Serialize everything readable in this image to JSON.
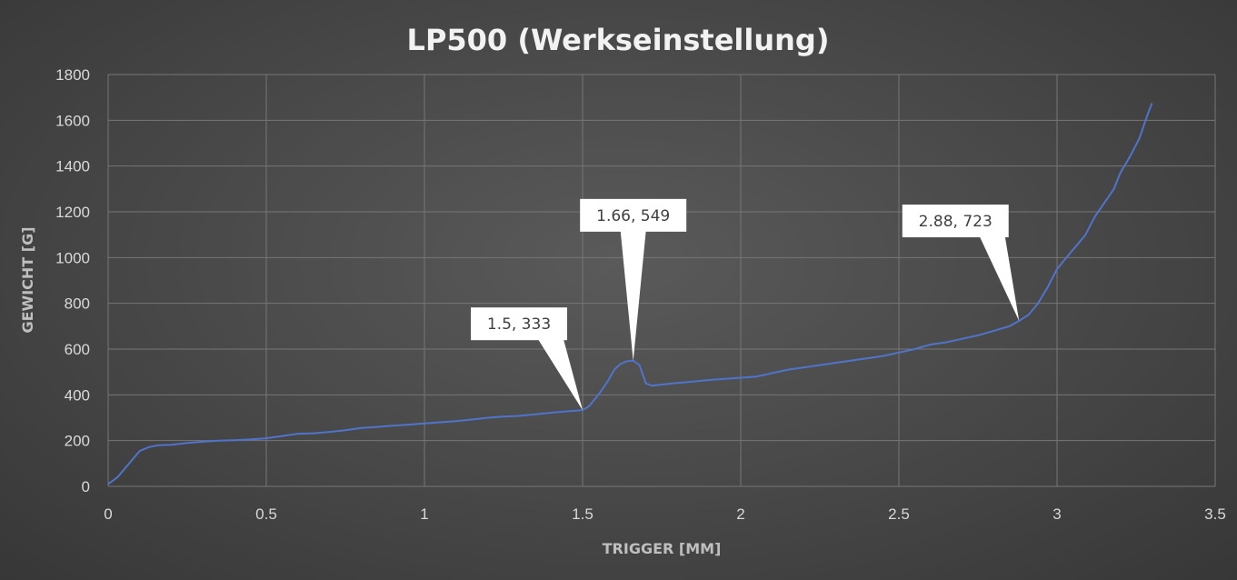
{
  "chart_data": {
    "type": "line",
    "title": "LP500 (Werkseinstellung)",
    "xlabel": "TRIGGER [MM]",
    "ylabel": "GEWICHT [G]",
    "xlim": [
      0,
      3.5
    ],
    "ylim": [
      0,
      1800
    ],
    "xticks": [
      0,
      0.5,
      1,
      1.5,
      2,
      2.5,
      3,
      3.5
    ],
    "xtick_labels": [
      "0",
      "0.5",
      "1",
      "1.5",
      "2",
      "2.5",
      "3",
      "3.5"
    ],
    "yticks": [
      0,
      200,
      400,
      600,
      800,
      1000,
      1200,
      1400,
      1600,
      1800
    ],
    "ytick_labels": [
      "0",
      "200",
      "400",
      "600",
      "800",
      "1000",
      "1200",
      "1400",
      "1600",
      "1800"
    ],
    "grid": true,
    "legend": "none",
    "series": [
      {
        "color": "#4f74c9",
        "x": [
          0,
          0.03,
          0.06,
          0.1,
          0.13,
          0.16,
          0.2,
          0.25,
          0.3,
          0.35,
          0.4,
          0.45,
          0.5,
          0.55,
          0.6,
          0.65,
          0.7,
          0.75,
          0.8,
          0.85,
          0.9,
          0.95,
          1.0,
          1.05,
          1.1,
          1.15,
          1.2,
          1.25,
          1.3,
          1.35,
          1.4,
          1.45,
          1.5,
          1.52,
          1.55,
          1.58,
          1.6,
          1.62,
          1.64,
          1.66,
          1.68,
          1.7,
          1.72,
          1.75,
          1.8,
          1.85,
          1.9,
          1.95,
          2.0,
          2.05,
          2.1,
          2.15,
          2.2,
          2.25,
          2.3,
          2.35,
          2.4,
          2.45,
          2.5,
          2.55,
          2.6,
          2.65,
          2.7,
          2.75,
          2.8,
          2.85,
          2.88,
          2.91,
          2.94,
          2.97,
          3.0,
          3.03,
          3.06,
          3.09,
          3.12,
          3.15,
          3.18,
          3.2,
          3.23,
          3.26,
          3.28,
          3.3
        ],
        "y": [
          10,
          40,
          90,
          155,
          172,
          180,
          182,
          190,
          195,
          200,
          202,
          205,
          210,
          220,
          230,
          232,
          238,
          245,
          255,
          260,
          265,
          270,
          275,
          280,
          285,
          292,
          300,
          305,
          308,
          315,
          322,
          328,
          333,
          350,
          400,
          460,
          510,
          535,
          547,
          549,
          530,
          450,
          440,
          445,
          452,
          458,
          465,
          470,
          475,
          480,
          495,
          510,
          520,
          530,
          540,
          550,
          560,
          570,
          585,
          600,
          620,
          630,
          645,
          660,
          680,
          700,
          723,
          750,
          800,
          870,
          950,
          1000,
          1050,
          1100,
          1180,
          1240,
          1300,
          1370,
          1440,
          1520,
          1600,
          1675
        ]
      }
    ],
    "annotations": [
      {
        "label": "1.5, 333",
        "x": 1.5,
        "y": 333
      },
      {
        "label": "1.66, 549",
        "x": 1.66,
        "y": 549
      },
      {
        "label": "2.88, 723",
        "x": 2.88,
        "y": 723
      }
    ]
  }
}
